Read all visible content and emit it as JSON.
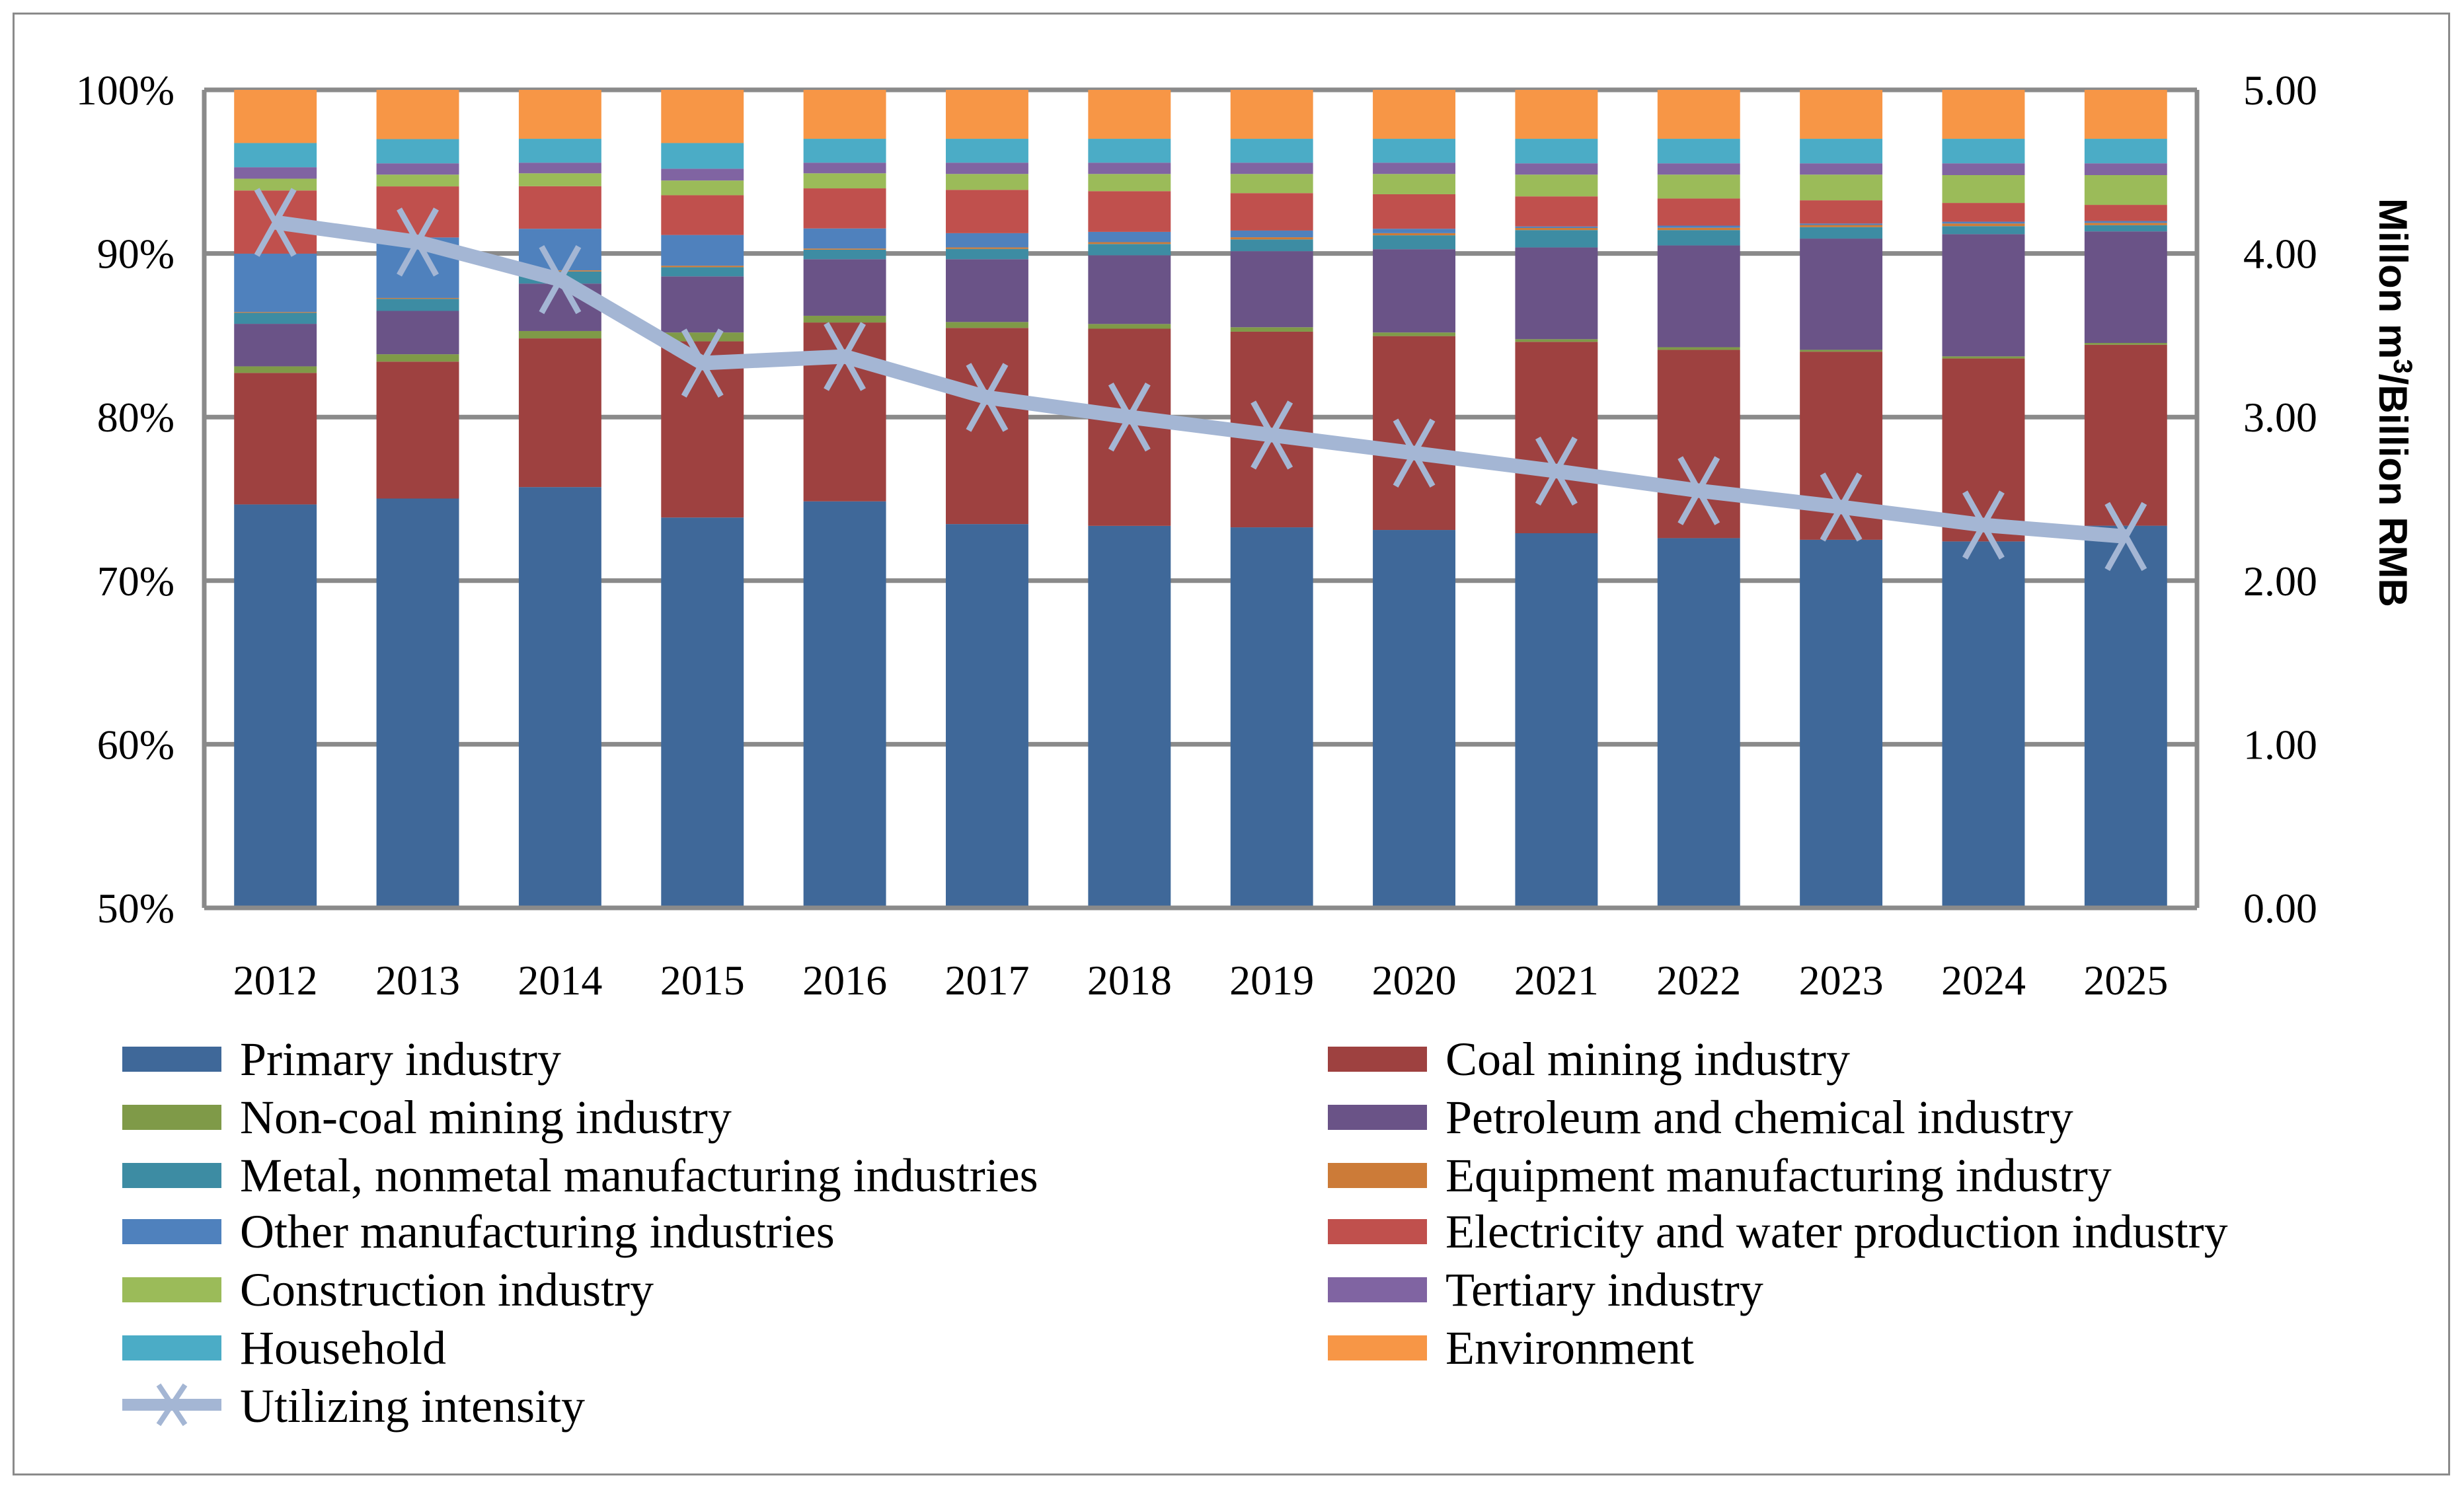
{
  "chart_data": {
    "type": "bar",
    "stacked": "percent",
    "categories": [
      "2012",
      "2013",
      "2014",
      "2015",
      "2016",
      "2017",
      "2018",
      "2019",
      "2020",
      "2021",
      "2022",
      "2023",
      "2024",
      "2025"
    ],
    "y_left": {
      "ylim": [
        50,
        100
      ],
      "ticks": [
        "50%",
        "60%",
        "70%",
        "80%",
        "90%",
        "100%"
      ],
      "tick_values": [
        50,
        60,
        70,
        80,
        90,
        100
      ]
    },
    "y_right": {
      "label_main": "Millon m",
      "label_sup": "3",
      "label_rest": "/Billion RMB",
      "ylim": [
        0,
        5
      ],
      "ticks": [
        "0.00",
        "1.00",
        "2.00",
        "3.00",
        "4.00",
        "5.00"
      ],
      "tick_values": [
        0,
        1,
        2,
        3,
        4,
        5
      ]
    },
    "grid": true,
    "legend_position": "bottom",
    "series": [
      {
        "name": "Primary industry",
        "color": "#3F6899",
        "values": [
          74.66,
          75.02,
          75.72,
          73.86,
          74.85,
          73.46,
          73.35,
          73.26,
          73.1,
          72.9,
          72.6,
          72.5,
          72.4,
          73.36
        ]
      },
      {
        "name": "Coal mining industry",
        "color": "#9E4140",
        "values": [
          8.04,
          8.37,
          9.09,
          10.77,
          10.93,
          11.99,
          12.05,
          11.96,
          11.85,
          11.7,
          11.51,
          11.5,
          11.18,
          11.06
        ]
      },
      {
        "name": "Non-coal mining industry",
        "color": "#7F9A48",
        "values": [
          0.4,
          0.45,
          0.45,
          0.54,
          0.41,
          0.36,
          0.29,
          0.27,
          0.22,
          0.16,
          0.16,
          0.11,
          0.13,
          0.11
        ]
      },
      {
        "name": "Petroleum and chemical industry",
        "color": "#6A5387",
        "values": [
          2.6,
          2.65,
          2.9,
          3.43,
          3.46,
          3.84,
          4.2,
          4.65,
          5.09,
          5.61,
          6.22,
          6.8,
          7.47,
          6.82
        ]
      },
      {
        "name": "Metal, nonmetal manufacturing industries",
        "color": "#3D8CA3",
        "values": [
          0.67,
          0.74,
          0.74,
          0.56,
          0.58,
          0.63,
          0.69,
          0.72,
          0.85,
          1.06,
          0.94,
          0.7,
          0.49,
          0.38
        ]
      },
      {
        "name": "Equipment manufacturing industry",
        "color": "#CC7B38",
        "values": [
          0.05,
          0.05,
          0.07,
          0.09,
          0.07,
          0.09,
          0.11,
          0.13,
          0.13,
          0.13,
          0.14,
          0.13,
          0.16,
          0.14
        ]
      },
      {
        "name": "Other manufacturing industries",
        "color": "#4F81BD",
        "values": [
          3.57,
          3.7,
          2.54,
          1.88,
          1.23,
          0.87,
          0.63,
          0.41,
          0.27,
          0.09,
          0.13,
          0.09,
          0.11,
          0.11
        ]
      },
      {
        "name": "Electricity and water production industry",
        "color": "#C0504D",
        "values": [
          3.86,
          3.12,
          2.6,
          2.43,
          2.45,
          2.65,
          2.49,
          2.29,
          2.11,
          1.84,
          1.66,
          1.42,
          1.15,
          0.99
        ]
      },
      {
        "name": "Construction industry",
        "color": "#9BBB59",
        "values": [
          0.72,
          0.72,
          0.79,
          0.9,
          0.92,
          0.97,
          1.05,
          1.17,
          1.24,
          1.33,
          1.46,
          1.57,
          1.7,
          1.82
        ]
      },
      {
        "name": "Tertiary industry",
        "color": "#8064A2",
        "values": [
          0.7,
          0.69,
          0.65,
          0.72,
          0.65,
          0.69,
          0.69,
          0.69,
          0.69,
          0.69,
          0.69,
          0.69,
          0.72,
          0.72
        ]
      },
      {
        "name": "Household",
        "color": "#4BACC6",
        "values": [
          1.48,
          1.48,
          1.46,
          1.57,
          1.46,
          1.46,
          1.46,
          1.46,
          1.46,
          1.5,
          1.5,
          1.5,
          1.5,
          1.5
        ]
      },
      {
        "name": "Environment",
        "color": "#F79646",
        "values": [
          3.25,
          3.01,
          2.99,
          3.25,
          2.99,
          2.99,
          2.99,
          2.99,
          2.99,
          2.99,
          2.99,
          2.99,
          2.99,
          2.99
        ]
      }
    ],
    "line_series": {
      "name": "Utilizing intensity",
      "type": "line",
      "axis": "right",
      "color": "#A4B6D4",
      "marker": "x",
      "values": [
        4.19,
        4.07,
        3.84,
        3.33,
        3.37,
        3.12,
        3.0,
        2.89,
        2.78,
        2.67,
        2.55,
        2.45,
        2.34,
        2.27
      ]
    }
  }
}
